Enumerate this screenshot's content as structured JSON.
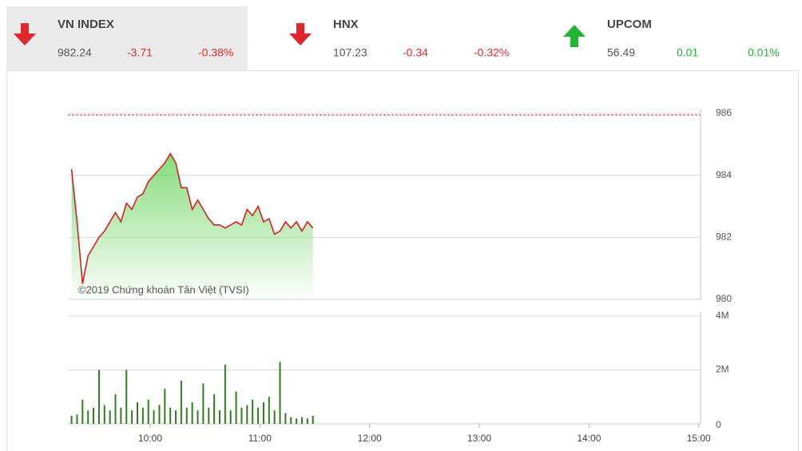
{
  "indices": [
    {
      "name": "VN INDEX",
      "value": "982.24",
      "change": "-3.71",
      "percent": "-0.38%",
      "direction": "down",
      "color": "#e3262b"
    },
    {
      "name": "HNX",
      "value": "107.23",
      "change": "-0.34",
      "percent": "-0.32%",
      "direction": "down",
      "color": "#e3262b"
    },
    {
      "name": "UPCOM",
      "value": "56.49",
      "change": "0.01",
      "percent": "0.01%",
      "direction": "up",
      "color": "#22b534"
    }
  ],
  "chart_data": [
    {
      "type": "line",
      "annotation": "©2019 Chứng khoán Tân Việt (TVSI)",
      "color": "#d42020",
      "fill_color": "#5ccf4e",
      "reference": 985.95,
      "reference_color": "#c62828",
      "x": [
        557,
        560,
        563,
        566,
        569,
        572,
        575,
        578,
        581,
        584,
        587,
        590,
        593,
        596,
        599,
        602,
        605,
        608,
        611,
        614,
        617,
        620,
        623,
        626,
        629,
        632,
        635,
        638,
        641,
        644,
        647,
        650,
        653,
        656,
        659,
        662,
        665,
        668,
        671,
        674,
        677,
        680,
        683,
        686,
        689
      ],
      "values": [
        984.2,
        982.5,
        980.5,
        981.4,
        981.7,
        982.0,
        982.2,
        982.5,
        982.8,
        982.5,
        983.1,
        982.9,
        983.3,
        983.4,
        983.8,
        984.0,
        984.2,
        984.4,
        984.7,
        984.4,
        983.6,
        983.6,
        982.9,
        983.2,
        982.9,
        982.6,
        982.4,
        982.4,
        982.3,
        982.4,
        982.5,
        982.4,
        982.9,
        982.7,
        983.0,
        982.5,
        982.6,
        982.1,
        982.2,
        982.5,
        982.3,
        982.5,
        982.2,
        982.5,
        982.3
      ],
      "xlim": [
        555,
        901
      ],
      "ylim": [
        980,
        986
      ],
      "yticks": [
        980,
        982,
        984,
        986
      ],
      "grid": true
    },
    {
      "type": "bar",
      "color": "#2e7d1f",
      "x": [
        557,
        560,
        563,
        566,
        569,
        572,
        575,
        578,
        581,
        584,
        587,
        590,
        593,
        596,
        599,
        602,
        605,
        608,
        611,
        614,
        617,
        620,
        623,
        626,
        629,
        632,
        635,
        638,
        641,
        644,
        647,
        650,
        653,
        656,
        659,
        662,
        665,
        668,
        671,
        674,
        677,
        680,
        683,
        686,
        689
      ],
      "values": [
        0.3,
        0.35,
        0.9,
        0.5,
        0.6,
        2.0,
        0.7,
        0.5,
        1.1,
        0.6,
        2.0,
        0.5,
        0.8,
        0.6,
        0.9,
        0.5,
        0.7,
        1.3,
        0.6,
        0.5,
        1.6,
        0.6,
        0.8,
        0.5,
        1.5,
        0.6,
        1.1,
        0.5,
        2.2,
        0.5,
        1.2,
        0.6,
        0.7,
        0.9,
        0.6,
        0.8,
        1.0,
        0.5,
        2.3,
        0.4,
        0.25,
        0.2,
        0.25,
        0.2,
        0.3
      ],
      "xlim": [
        555,
        901
      ],
      "ylim": [
        0,
        4
      ],
      "yticks": [
        0,
        {
          "value": 2,
          "label": "2M"
        },
        {
          "value": 4,
          "label": "4M"
        }
      ],
      "xticks": [
        {
          "value": 600,
          "label": "10:00"
        },
        {
          "value": 660,
          "label": "11:00"
        },
        {
          "value": 720,
          "label": "12:00"
        },
        {
          "value": 780,
          "label": "13:00"
        },
        {
          "value": 840,
          "label": "14:00"
        },
        {
          "value": 900,
          "label": "15:00"
        }
      ],
      "grid": true
    }
  ]
}
